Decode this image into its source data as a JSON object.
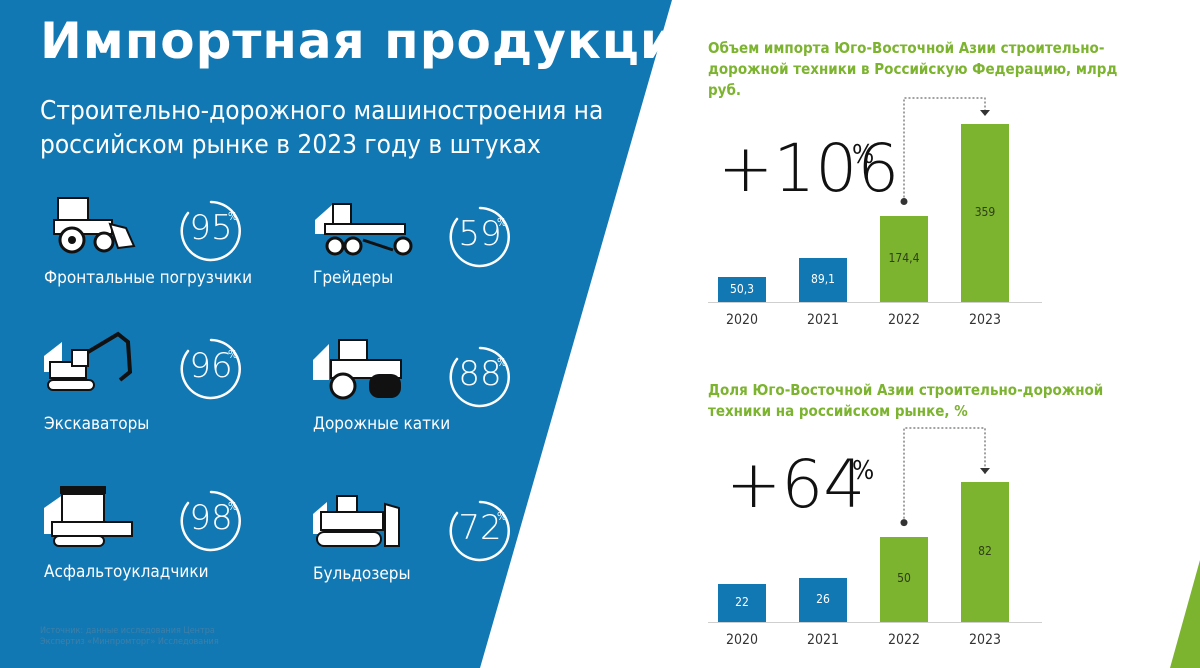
{
  "header": {
    "title": "Импортная продукция",
    "subtitle": "Строительно-дорожного машиностроения на российском рынке в 2023 году в штуках"
  },
  "machines": [
    {
      "name": "Фронтальные погрузчики",
      "icon": "wheel-loader-icon",
      "percent": "95",
      "percent_sign": "%"
    },
    {
      "name": "Грейдеры",
      "icon": "grader-icon",
      "percent": "59",
      "percent_sign": "%"
    },
    {
      "name": "Экскаваторы",
      "icon": "excavator-icon",
      "percent": "96",
      "percent_sign": "%"
    },
    {
      "name": "Дорожные катки",
      "icon": "road-roller-icon",
      "percent": "88",
      "percent_sign": "%"
    },
    {
      "name": "Асфальтоукладчики",
      "icon": "asphalt-paver-icon",
      "percent": "98",
      "percent_sign": "%"
    },
    {
      "name": "Бульдозеры",
      "icon": "bulldozer-icon",
      "percent": "72",
      "percent_sign": "%"
    }
  ],
  "source_note": "Источник: данные исследования Центра Экспертиз «Минпромторг» Исследования",
  "colors": {
    "panel_blue": "#1278b3",
    "bar_blue": "#1278b3",
    "bar_green": "#7cb32f",
    "title_green": "#7cb32f"
  },
  "chart_data": [
    {
      "type": "bar",
      "title": "Объем импорта Юго-Восточной Азии строительно-дорожной техники в Российскую Федерацию, млрд руб.",
      "categories": [
        "2020",
        "2021",
        "2022",
        "2023"
      ],
      "values": [
        50.3,
        89.1,
        174.4,
        359
      ],
      "value_labels": [
        "50,3",
        "89,1",
        "174,4",
        "359"
      ],
      "bar_colors": [
        "#1278b3",
        "#1278b3",
        "#7cb32f",
        "#7cb32f"
      ],
      "growth": {
        "value": "+106",
        "unit": "%",
        "from": "2022",
        "to": "2023"
      },
      "ylim": [
        0,
        359
      ]
    },
    {
      "type": "bar",
      "title": "Доля Юго-Восточной Азии строительно-дорожной техники на российском рынке, %",
      "categories": [
        "2020",
        "2021",
        "2022",
        "2023"
      ],
      "values": [
        22,
        26,
        50,
        82
      ],
      "value_labels": [
        "22",
        "26",
        "50",
        "82"
      ],
      "bar_colors": [
        "#1278b3",
        "#1278b3",
        "#7cb32f",
        "#7cb32f"
      ],
      "growth": {
        "value": "+64",
        "unit": "%",
        "from": "2022",
        "to": "2023"
      },
      "ylim": [
        0,
        82
      ]
    }
  ]
}
